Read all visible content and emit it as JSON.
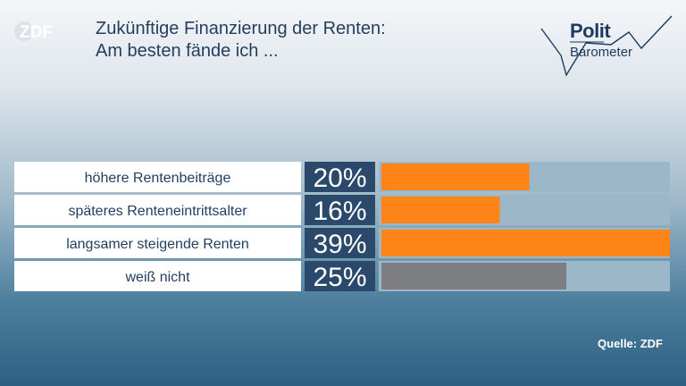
{
  "title_lines": [
    "Zukünftige Finanzierung der Renten:",
    "Am besten fände ich ..."
  ],
  "brand": {
    "line1": "Polit",
    "line2": "Barometer"
  },
  "logo_text": "ZDF",
  "source": "Quelle: ZDF",
  "colors": {
    "title": "#233f60",
    "label_bg": "#ffffff",
    "label_text": "#233f60",
    "value_bg": "#2b4a6b",
    "value_text": "#ffffff",
    "track": "#9cb8c8",
    "bar_highlight": "#ff8418",
    "bar_neutral": "#7d7e82"
  },
  "chart_data": {
    "type": "bar",
    "orientation": "horizontal",
    "categories": [
      "höhere Rentenbeiträge",
      "späteres Renteneintrittsalter",
      "langsamer steigende Renten",
      "weiß nicht"
    ],
    "values": [
      20,
      16,
      39,
      25
    ],
    "value_labels": [
      "20%",
      "16%",
      "39%",
      "25%"
    ],
    "unit": "%",
    "xlim": [
      0,
      39
    ],
    "bar_colors": [
      "orange",
      "orange",
      "orange",
      "gray"
    ],
    "grid": false,
    "legend": "none"
  }
}
